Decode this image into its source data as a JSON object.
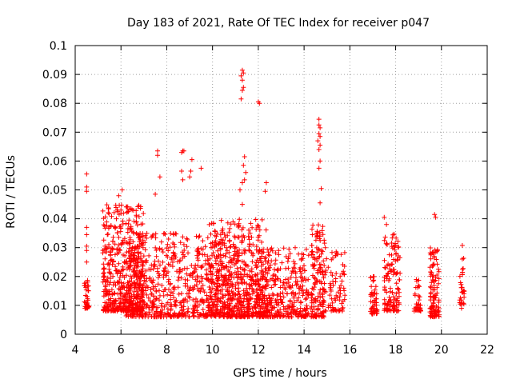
{
  "chart_data": {
    "type": "scatter",
    "title": "Day 183 of 2021, Rate Of TEC Index for receiver p047",
    "xlabel": "GPS time / hours",
    "ylabel": "ROTI / TECUs",
    "xlim": [
      4,
      22
    ],
    "ylim": [
      0,
      0.1
    ],
    "xticks": [
      4,
      6,
      8,
      10,
      12,
      14,
      16,
      18,
      20,
      22
    ],
    "yticks": [
      0,
      0.01,
      0.02,
      0.03,
      0.04,
      0.05,
      0.06,
      0.07,
      0.08,
      0.09,
      0.1
    ],
    "ytick_labels": [
      "0",
      "0.01",
      "0.02",
      "0.03",
      "0.04",
      "0.05",
      "0.06",
      "0.07",
      "0.08",
      "0.09",
      "0.1"
    ],
    "grid": true,
    "marker": "+",
    "series_color": "#ff0000",
    "clusters": [
      {
        "x_range": [
          4.4,
          4.6
        ],
        "y_range": [
          0.009,
          0.019
        ],
        "count": 40
      },
      {
        "x_range": [
          5.2,
          7.0
        ],
        "y_range": [
          0.008,
          0.045
        ],
        "count": 500
      },
      {
        "x_range": [
          6.2,
          12.0
        ],
        "y_range": [
          0.006,
          0.035
        ],
        "count": 900
      },
      {
        "x_range": [
          9.8,
          12.4
        ],
        "y_range": [
          0.006,
          0.04
        ],
        "count": 350
      },
      {
        "x_range": [
          12.0,
          14.2
        ],
        "y_range": [
          0.006,
          0.03
        ],
        "count": 350
      },
      {
        "x_range": [
          14.3,
          14.9
        ],
        "y_range": [
          0.006,
          0.038
        ],
        "count": 150
      },
      {
        "x_range": [
          14.9,
          15.8
        ],
        "y_range": [
          0.008,
          0.03
        ],
        "count": 80
      },
      {
        "x_range": [
          16.9,
          17.2
        ],
        "y_range": [
          0.007,
          0.02
        ],
        "count": 50
      },
      {
        "x_range": [
          17.5,
          18.2
        ],
        "y_range": [
          0.008,
          0.035
        ],
        "count": 130
      },
      {
        "x_range": [
          18.8,
          19.1
        ],
        "y_range": [
          0.008,
          0.019
        ],
        "count": 35
      },
      {
        "x_range": [
          19.5,
          19.9
        ],
        "y_range": [
          0.006,
          0.03
        ],
        "count": 110
      },
      {
        "x_range": [
          20.8,
          21.0
        ],
        "y_range": [
          0.009,
          0.031
        ],
        "count": 30
      }
    ],
    "points": [
      [
        4.5,
        0.0555
      ],
      [
        4.5,
        0.051
      ],
      [
        4.5,
        0.0495
      ],
      [
        4.5,
        0.037
      ],
      [
        4.5,
        0.0345
      ],
      [
        4.5,
        0.0305
      ],
      [
        4.5,
        0.029
      ],
      [
        4.5,
        0.025
      ],
      [
        5.9,
        0.048
      ],
      [
        6.0,
        0.043
      ],
      [
        5.8,
        0.04
      ],
      [
        6.05,
        0.05
      ],
      [
        7.6,
        0.0635
      ],
      [
        7.6,
        0.062
      ],
      [
        7.7,
        0.0545
      ],
      [
        7.5,
        0.0485
      ],
      [
        8.7,
        0.0635
      ],
      [
        8.75,
        0.0635
      ],
      [
        8.65,
        0.063
      ],
      [
        8.65,
        0.0565
      ],
      [
        8.7,
        0.0535
      ],
      [
        9.1,
        0.0605
      ],
      [
        9.05,
        0.0565
      ],
      [
        9.0,
        0.0545
      ],
      [
        9.5,
        0.0575
      ],
      [
        11.3,
        0.0915
      ],
      [
        11.35,
        0.0905
      ],
      [
        11.25,
        0.0895
      ],
      [
        11.3,
        0.088
      ],
      [
        11.35,
        0.0855
      ],
      [
        11.3,
        0.0845
      ],
      [
        11.25,
        0.0815
      ],
      [
        11.4,
        0.0615
      ],
      [
        11.35,
        0.0585
      ],
      [
        11.45,
        0.056
      ],
      [
        11.4,
        0.0535
      ],
      [
        11.3,
        0.0525
      ],
      [
        11.2,
        0.05
      ],
      [
        11.3,
        0.045
      ],
      [
        12.0,
        0.0805
      ],
      [
        12.05,
        0.08
      ],
      [
        12.35,
        0.0525
      ],
      [
        12.3,
        0.0495
      ],
      [
        14.65,
        0.0745
      ],
      [
        14.65,
        0.0725
      ],
      [
        14.7,
        0.0715
      ],
      [
        14.65,
        0.0695
      ],
      [
        14.7,
        0.0685
      ],
      [
        14.6,
        0.067
      ],
      [
        14.7,
        0.0655
      ],
      [
        14.65,
        0.064
      ],
      [
        14.7,
        0.06
      ],
      [
        14.65,
        0.0575
      ],
      [
        14.75,
        0.0505
      ],
      [
        14.7,
        0.0455
      ],
      [
        17.5,
        0.0405
      ],
      [
        17.6,
        0.038
      ],
      [
        19.7,
        0.0415
      ],
      [
        19.75,
        0.0405
      ]
    ]
  }
}
